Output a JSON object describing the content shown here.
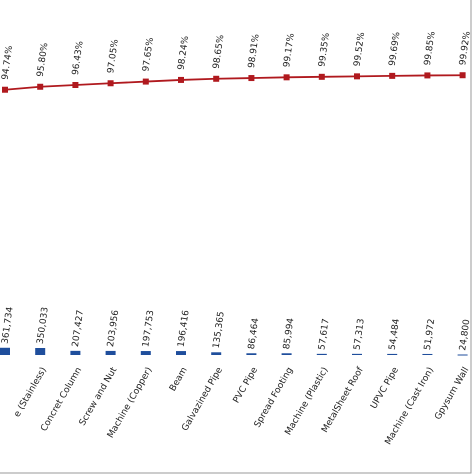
{
  "chart_data": {
    "type": "pareto",
    "categories": [
      null,
      "e (Stainless)",
      "Concret Column",
      "Screw and Nut",
      "Machine (Copper)",
      "Beam",
      "Galvazined Pipe",
      "PVC Pipe",
      "Spread Footing",
      "Machine (Plastic)",
      "MetalSheet Roof",
      "UPVC Pipe",
      "Machine (Cast Iron)",
      "Gpysum Wall"
    ],
    "series": [
      {
        "type": "bar",
        "color": "#1f4e9c",
        "values": [
          361734,
          350033,
          207427,
          203956,
          197753,
          196416,
          135365,
          86464,
          85994,
          57617,
          57313,
          54484,
          51972,
          24800
        ],
        "value_labels": [
          "361,734",
          "350,033",
          "207,427",
          "203,956",
          "197,753",
          "196,416",
          "135,365",
          "86,464",
          "85,994",
          "57,617",
          "57,313",
          "54,484",
          "51,972",
          "24,800"
        ]
      },
      {
        "type": "line",
        "axis": "y2",
        "color": "#b0191e",
        "values": [
          94.74,
          95.8,
          96.43,
          97.05,
          97.65,
          98.24,
          98.65,
          98.91,
          99.17,
          99.35,
          99.52,
          99.69,
          99.85,
          99.92
        ],
        "value_labels": [
          "94.74%",
          "95.80%",
          "96.43%",
          "97.05%",
          "97.65%",
          "98.24%",
          "98.65%",
          "98.91%",
          "99.17%",
          "99.35%",
          "99.52%",
          "99.69%",
          "99.85%",
          "99.92%"
        ]
      }
    ],
    "ylim": [
      0,
      14000000
    ],
    "y2lim": [
      0,
      100
    ]
  }
}
